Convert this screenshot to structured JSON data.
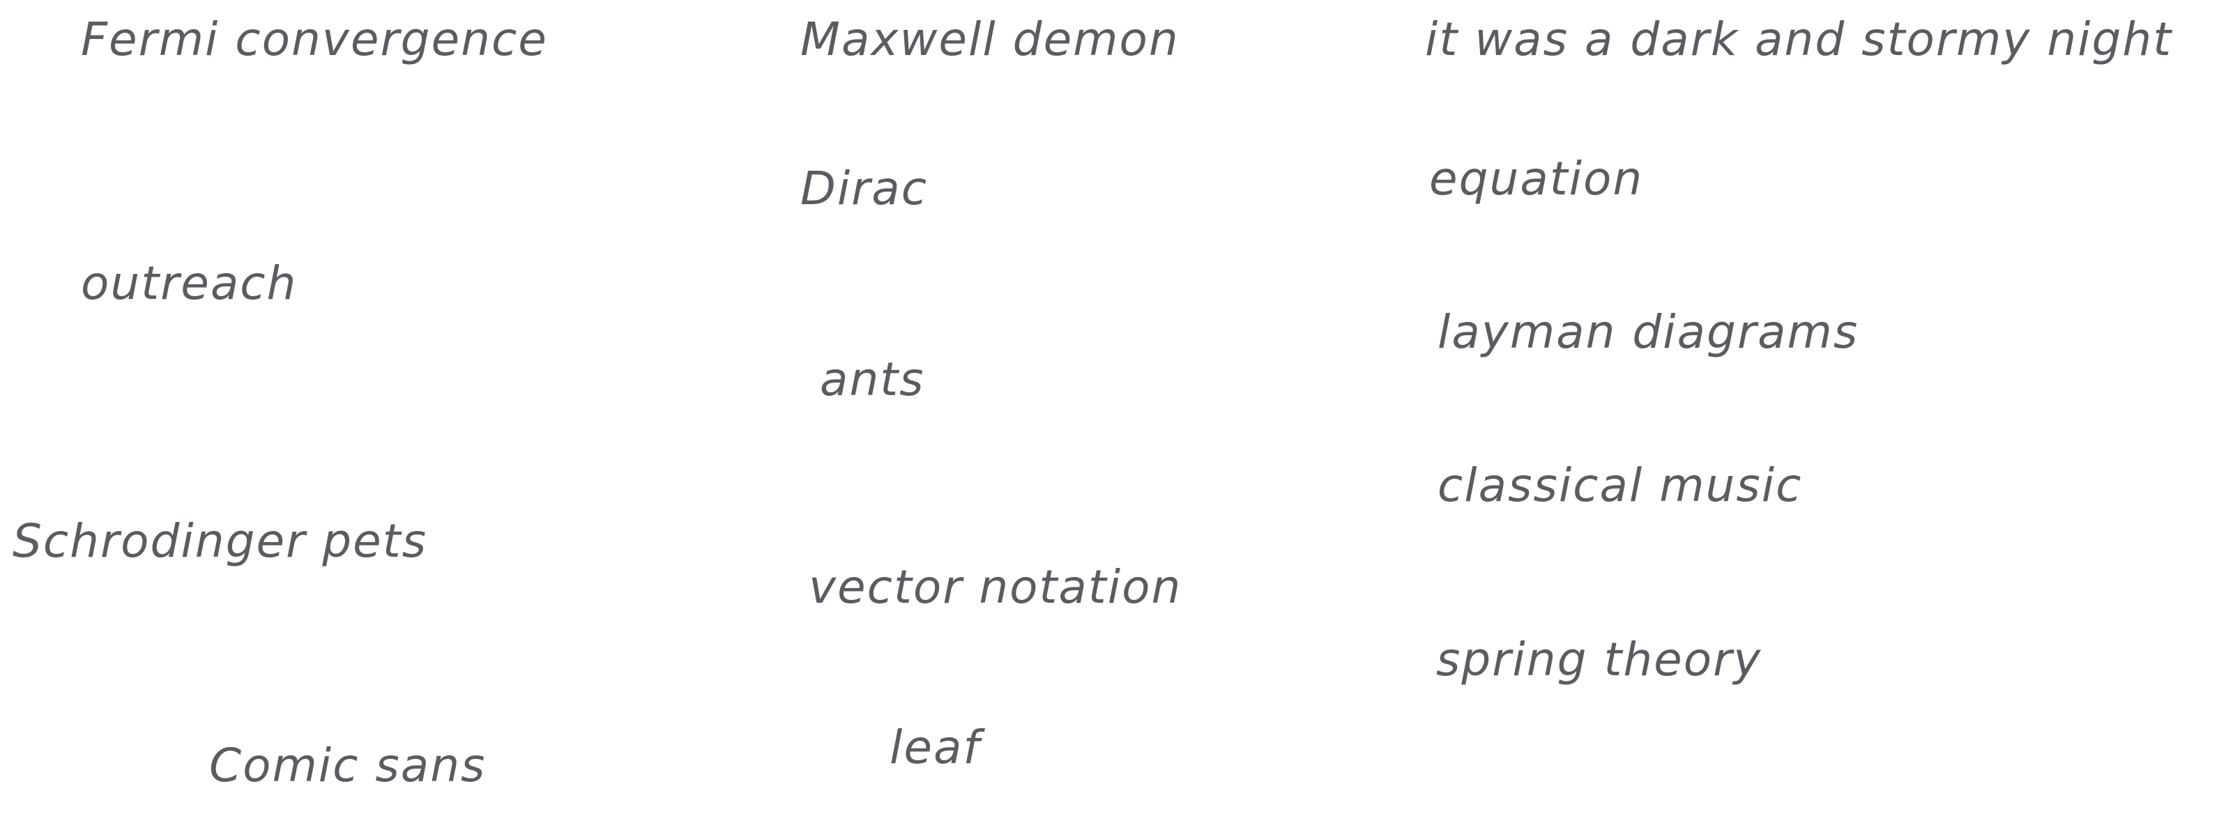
{
  "canvas": {
    "text_color": "#5b5b63",
    "background_color": "#ffffff",
    "words": [
      "Fermi convergence",
      "outreach",
      "Schrodinger pets",
      "Comic sans",
      "Maxwell demon",
      "Dirac",
      "ants",
      "vector notation",
      "leaf",
      "it was a dark and stormy night",
      "equation",
      "layman diagrams",
      "classical music",
      "spring theory"
    ]
  }
}
